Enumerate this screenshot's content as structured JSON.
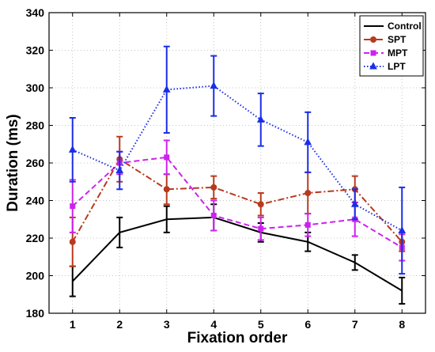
{
  "chart_data": {
    "type": "line",
    "title": "",
    "xlabel": "Fixation order",
    "ylabel": "Duration (ms)",
    "x": [
      1,
      2,
      3,
      4,
      5,
      6,
      7,
      8
    ],
    "xlim": [
      0.5,
      8.5
    ],
    "ylim": [
      180,
      340
    ],
    "xticks": [
      1,
      2,
      3,
      4,
      5,
      6,
      7,
      8
    ],
    "yticks": [
      180,
      200,
      220,
      240,
      260,
      280,
      300,
      320,
      340
    ],
    "grid": true,
    "legend_position": "top-right",
    "series": [
      {
        "name": "Control",
        "color": "#000000",
        "line_style": "solid",
        "marker": "none",
        "values": [
          197,
          223,
          230,
          231,
          223,
          218,
          207,
          192
        ],
        "errors": [
          8,
          8,
          7,
          7,
          5,
          5,
          4,
          7
        ]
      },
      {
        "name": "SPT",
        "color": "#b83a1e",
        "line_style": "dashdot",
        "marker": "circle",
        "values": [
          218,
          262,
          246,
          247,
          238,
          244,
          246,
          218
        ],
        "errors": [
          13,
          12,
          8,
          6,
          6,
          11,
          7,
          5
        ]
      },
      {
        "name": "MPT",
        "color": "#cc22ee",
        "line_style": "dashed",
        "marker": "square",
        "values": [
          237,
          260,
          263,
          232,
          225,
          227,
          230,
          215
        ],
        "errors": [
          14,
          6,
          9,
          8,
          6,
          6,
          9,
          7
        ]
      },
      {
        "name": "LPT",
        "color": "#1a2ee6",
        "line_style": "dotted",
        "marker": "triangle",
        "values": [
          267,
          256,
          299,
          301,
          283,
          271,
          238,
          224
        ],
        "errors": [
          17,
          10,
          23,
          16,
          14,
          16,
          8,
          23
        ]
      }
    ]
  }
}
